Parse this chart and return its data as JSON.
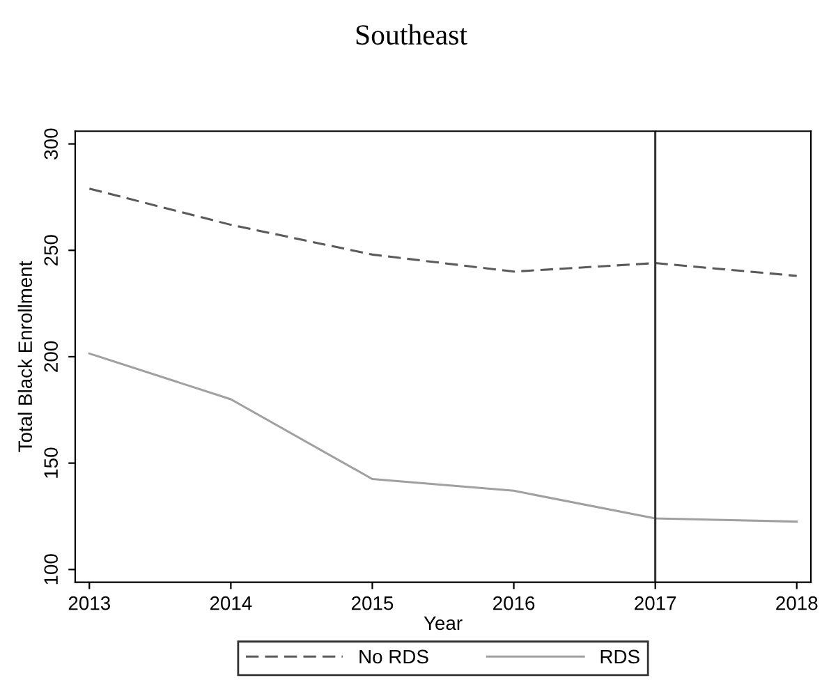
{
  "chart_data": {
    "type": "line",
    "title": "Southeast",
    "xlabel": "Year",
    "ylabel": "Total Black Enrollment",
    "x": [
      2013,
      2014,
      2015,
      2016,
      2017,
      2018
    ],
    "series": [
      {
        "name": "No RDS",
        "color": "#5a5a5a",
        "line_style": "dashed",
        "values": [
          279,
          262,
          248,
          240,
          244,
          238
        ]
      },
      {
        "name": "RDS",
        "color": "#a0a0a0",
        "line_style": "solid",
        "values": [
          201.5,
          180,
          142.5,
          137,
          124,
          122.5
        ]
      }
    ],
    "xlim": [
      2012.9,
      2018.1
    ],
    "xticks": [
      2013,
      2014,
      2015,
      2016,
      2017,
      2018
    ],
    "ylim": [
      94,
      306
    ],
    "yticks": [
      100,
      150,
      200,
      250,
      300
    ],
    "ref_lines": [
      {
        "axis": "x",
        "value": 2017,
        "color": "#333333"
      }
    ],
    "grid": false,
    "legend": "bottom",
    "marker": "none"
  }
}
